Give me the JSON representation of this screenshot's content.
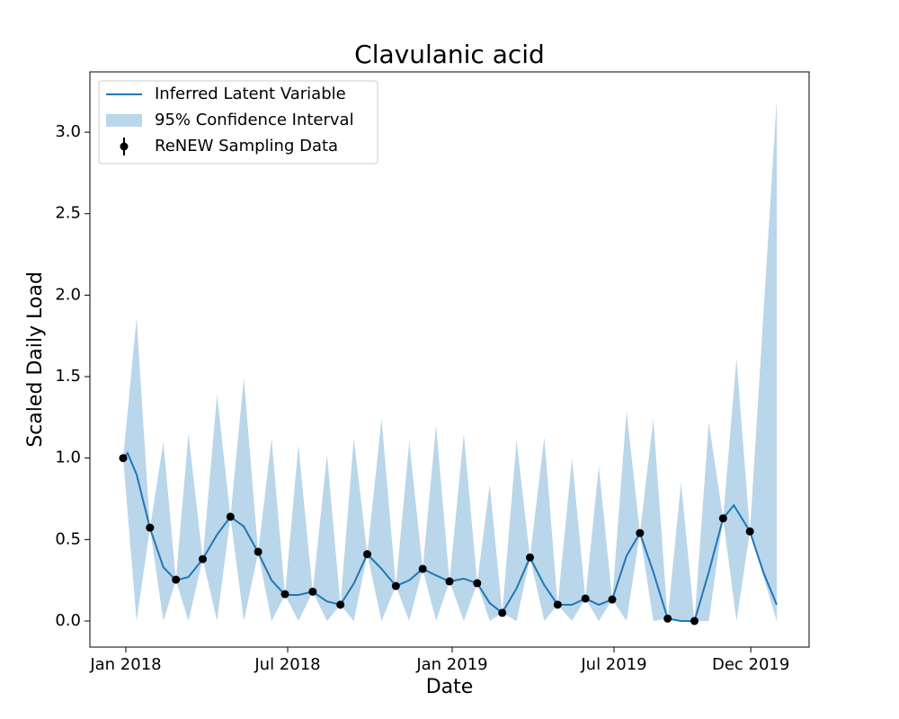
{
  "chart_data": {
    "type": "line",
    "title": "Clavulanic acid",
    "xlabel": "Date",
    "ylabel": "Scaled Daily Load",
    "xlim": [
      -40.2,
      764.2
    ],
    "ylim": [
      -0.16,
      3.37
    ],
    "xticks": [
      {
        "value": 0,
        "label": "Jan 2018"
      },
      {
        "value": 181,
        "label": "Jul 2018"
      },
      {
        "value": 365,
        "label": "Jan 2019"
      },
      {
        "value": 546,
        "label": "Jul 2019"
      },
      {
        "value": 699,
        "label": "Dec 2019"
      }
    ],
    "yticks": [
      {
        "value": 0,
        "label": "0.0"
      },
      0.5,
      {
        "value": 1,
        "label": "1.0"
      },
      1.5,
      {
        "value": 2,
        "label": "2.0"
      },
      2.5,
      {
        "value": 3,
        "label": "3.0"
      }
    ],
    "legend": "upper left",
    "series": [
      {
        "name": "Inferred Latent Variable",
        "kind": "line",
        "color": "#1f77b4",
        "x": [
          -3,
          2,
          12,
          27,
          42,
          56,
          70,
          86,
          102,
          117,
          132,
          148,
          163,
          178,
          193,
          209,
          225,
          240,
          255,
          270,
          286,
          302,
          317,
          332,
          347,
          362,
          378,
          393,
          407,
          421,
          437,
          452,
          468,
          483,
          499,
          514,
          529,
          544,
          560,
          575,
          590,
          606,
          621,
          636,
          652,
          668,
          680,
          698,
          713,
          728
        ],
        "values": [
          1.0,
          1.03,
          0.9,
          0.57,
          0.33,
          0.25,
          0.27,
          0.38,
          0.53,
          0.64,
          0.58,
          0.42,
          0.25,
          0.16,
          0.16,
          0.18,
          0.12,
          0.1,
          0.23,
          0.41,
          0.32,
          0.215,
          0.25,
          0.32,
          0.28,
          0.243,
          0.26,
          0.232,
          0.11,
          0.05,
          0.2,
          0.39,
          0.22,
          0.1,
          0.1,
          0.138,
          0.1,
          0.132,
          0.4,
          0.54,
          0.3,
          0.015,
          0.0,
          0.0,
          0.3,
          0.63,
          0.71,
          0.55,
          0.3,
          0.1
        ]
      },
      {
        "name": "95% Confidence Interval",
        "kind": "band",
        "color": "#bad6ea",
        "x": [
          -3,
          12,
          27,
          42,
          56,
          70,
          86,
          102,
          117,
          132,
          148,
          163,
          178,
          193,
          209,
          225,
          240,
          255,
          270,
          286,
          302,
          317,
          332,
          347,
          362,
          378,
          393,
          407,
          421,
          437,
          452,
          468,
          483,
          499,
          514,
          529,
          544,
          560,
          575,
          590,
          606,
          621,
          636,
          652,
          668,
          683,
          698,
          728
        ],
        "upper": [
          1.0,
          1.86,
          0.57,
          1.1,
          0.25,
          1.15,
          0.38,
          1.39,
          0.64,
          1.49,
          0.42,
          1.12,
          0.16,
          1.08,
          0.18,
          1.02,
          0.1,
          1.12,
          0.41,
          1.24,
          0.215,
          1.1,
          0.32,
          1.2,
          0.243,
          1.15,
          0.232,
          0.84,
          0.05,
          1.11,
          0.39,
          1.13,
          0.1,
          1.0,
          0.138,
          0.95,
          0.132,
          1.29,
          0.54,
          1.24,
          0.015,
          0.85,
          0.0,
          1.22,
          0.63,
          1.61,
          0.55,
          3.2
        ],
        "lower": [
          1.0,
          0,
          0.57,
          0,
          0.25,
          0,
          0.38,
          0,
          0.64,
          0,
          0.42,
          0,
          0.16,
          0,
          0.18,
          0,
          0.1,
          0,
          0.41,
          0,
          0.215,
          0,
          0.32,
          0,
          0.243,
          0,
          0.232,
          0,
          0.05,
          0,
          0.39,
          0,
          0.1,
          0,
          0.138,
          0,
          0.132,
          0,
          0.54,
          0,
          0.015,
          0,
          0.0,
          0,
          0.63,
          0,
          0.55,
          0
        ]
      },
      {
        "name": "ReNEW Sampling Data",
        "kind": "scatter",
        "color": "#000000",
        "x": [
          -3,
          27,
          56,
          86,
          117,
          148,
          178,
          209,
          240,
          270,
          302,
          332,
          362,
          393,
          421,
          452,
          483,
          514,
          544,
          575,
          606,
          636,
          668,
          698
        ],
        "values": [
          1.0,
          0.573,
          0.254,
          0.38,
          0.64,
          0.425,
          0.165,
          0.18,
          0.1,
          0.41,
          0.215,
          0.32,
          0.243,
          0.232,
          0.05,
          0.39,
          0.1,
          0.138,
          0.132,
          0.54,
          0.015,
          0.0,
          0.63,
          0.55
        ]
      }
    ]
  }
}
